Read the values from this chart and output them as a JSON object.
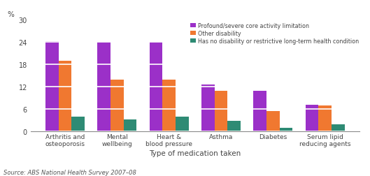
{
  "categories": [
    "Arthritis and\nosteoporosis",
    "Mental\nwellbeing",
    "Heart &\nblood pressure",
    "Asthma",
    "Diabetes",
    "Serum lipid\nreducing agents"
  ],
  "series": {
    "Profound/severe core activity limitation": [
      24.2,
      24.0,
      23.9,
      12.5,
      10.8,
      7.2
    ],
    "Other disability": [
      19.0,
      13.9,
      13.8,
      10.8,
      5.5,
      7.0
    ],
    "Has no disability or restrictive long-term health condition": [
      4.0,
      3.2,
      4.0,
      2.8,
      1.0,
      1.8
    ]
  },
  "colors": {
    "Profound/severe core activity limitation": "#9B30C8",
    "Other disability": "#F07830",
    "Has no disability or restrictive long-term health condition": "#2E8B74"
  },
  "xlabel": "Type of medication taken",
  "ylim": [
    0,
    30
  ],
  "yticks": [
    0,
    6,
    12,
    18,
    24,
    30
  ],
  "grid_color": "#FFFFFF",
  "bg_color": "#FFFFFF",
  "source": "Source: ABS National Health Survey 2007–08",
  "legend_order": [
    "Profound/severe core activity limitation",
    "Other disability",
    "Has no disability or restrictive long-term health condition"
  ],
  "bar_width": 0.25,
  "figsize": [
    5.29,
    2.53
  ],
  "dpi": 100
}
